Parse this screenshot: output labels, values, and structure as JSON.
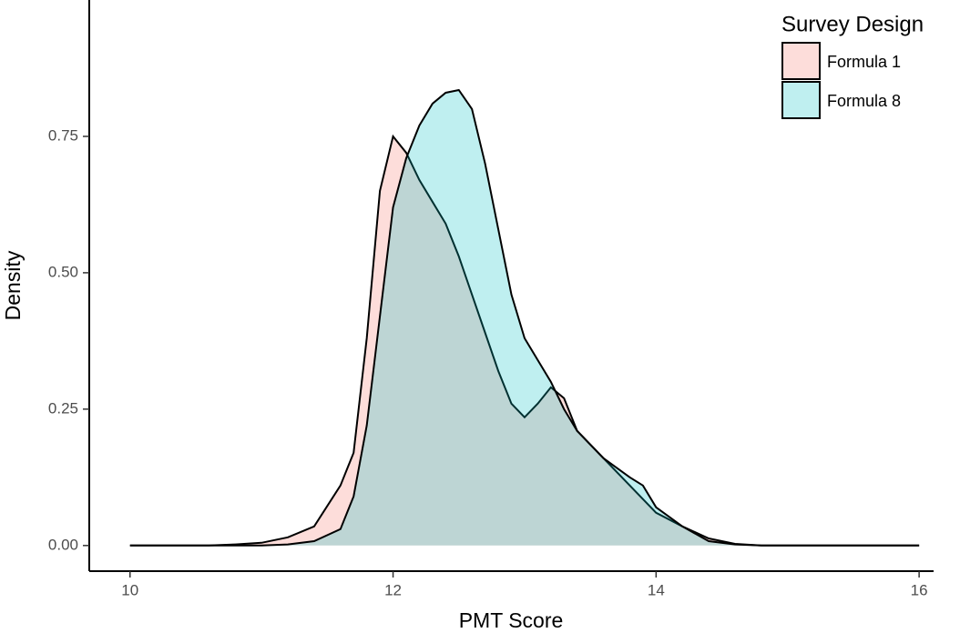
{
  "chart_data": {
    "type": "density",
    "x_label": "PMT Score",
    "y_label": "Density",
    "legend_title": "Survey Design",
    "legend_position": "top-right",
    "x": [
      10,
      10.6,
      10.8,
      11,
      11.2,
      11.4,
      11.6,
      11.7,
      11.8,
      11.9,
      12,
      12.1,
      12.2,
      12.3,
      12.4,
      12.5,
      12.6,
      12.7,
      12.8,
      12.9,
      13,
      13.1,
      13.2,
      13.3,
      13.4,
      13.6,
      13.8,
      13.9,
      14,
      14.2,
      14.4,
      14.6,
      14.8,
      16
    ],
    "series": [
      {
        "name": "Formula 1",
        "color": "#f8766d",
        "values": [
          0,
          0,
          0.002,
          0.005,
          0.015,
          0.035,
          0.11,
          0.17,
          0.38,
          0.65,
          0.75,
          0.72,
          0.67,
          0.63,
          0.59,
          0.53,
          0.46,
          0.39,
          0.32,
          0.26,
          0.235,
          0.26,
          0.29,
          0.27,
          0.21,
          0.16,
          0.11,
          0.085,
          0.06,
          0.035,
          0.013,
          0.003,
          0,
          0
        ]
      },
      {
        "name": "Formula 8",
        "color": "#00bfc4",
        "values": [
          0,
          0,
          0,
          0,
          0.002,
          0.008,
          0.03,
          0.09,
          0.22,
          0.42,
          0.62,
          0.71,
          0.77,
          0.81,
          0.83,
          0.835,
          0.8,
          0.7,
          0.58,
          0.46,
          0.38,
          0.34,
          0.3,
          0.25,
          0.21,
          0.16,
          0.125,
          0.11,
          0.07,
          0.035,
          0.008,
          0.002,
          0,
          0
        ]
      }
    ],
    "xlim": [
      9.69,
      16.11
    ],
    "ylim": [
      -0.047,
      1.0
    ],
    "xticks": [
      10,
      12,
      14,
      16
    ],
    "yticks": [
      {
        "value": 0,
        "label": "0.00"
      },
      0.25,
      {
        "value": 0.5,
        "label": "0.50"
      },
      0.75
    ],
    "fill_opacity": 0.25,
    "grid": false
  }
}
